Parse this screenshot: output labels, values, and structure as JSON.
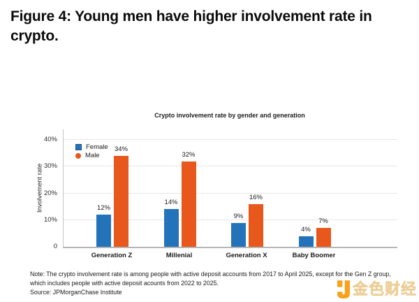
{
  "figure": {
    "title": "Figure 4: Young men have higher involvement rate in\ncrypto.",
    "note": "Note: The crypto involvement rate is among people with active deposit accounts from 2017 to April 2025, except for the Gen Z group,\nwhich includes people with active deposit acounts from 2022 to 2025.",
    "source": "Source: JPMorganChase Institute"
  },
  "watermark": {
    "text": "金色财经",
    "logo_color": "#F9A11B",
    "text_color": "#EAC581"
  },
  "chart_data": {
    "type": "bar",
    "title": "Crypto involvement rate by gender and generation",
    "categories": [
      "Generation Z",
      "Millenial",
      "Generation X",
      "Baby Boomer"
    ],
    "series": [
      {
        "name": "Female",
        "marker": "square",
        "color": "#2373BB",
        "values": [
          12,
          14,
          9,
          4
        ]
      },
      {
        "name": "Male",
        "marker": "circle",
        "color": "#E8581C",
        "values": [
          34,
          32,
          16,
          7
        ]
      }
    ],
    "value_label_suffix": "%",
    "xlabel": "",
    "ylabel": "Involvement rate",
    "ylim": [
      0,
      40
    ],
    "yticks": [
      "0",
      "10%",
      "20%",
      "30%",
      "40%"
    ],
    "grid": true,
    "legend_position": "top-left-inside",
    "axis_colors": {
      "grid": "#e7e7e7",
      "axis": "#b5b5b5",
      "text": "#1c1c1c"
    }
  }
}
